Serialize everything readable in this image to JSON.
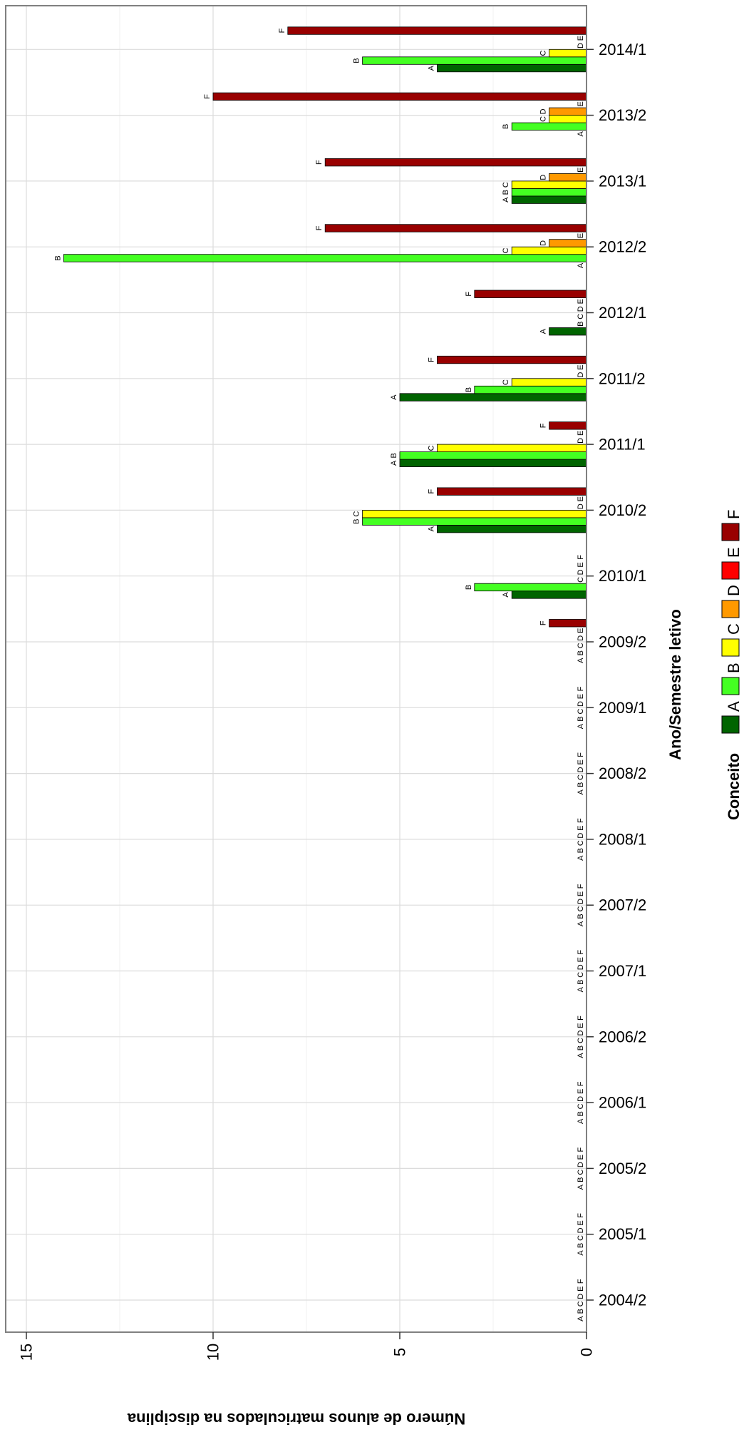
{
  "chart_data": {
    "type": "bar",
    "orientation": "horizontal",
    "xlabel": "Ano/Semestre letivo",
    "ylabel": "Número de alunos matriculados na disciplina",
    "ylim": [
      0,
      15.5
    ],
    "yticks": [
      0,
      5,
      10,
      15
    ],
    "grid": true,
    "legend": {
      "title": "Conceito",
      "position": "bottom",
      "entries": [
        "A",
        "B",
        "C",
        "D",
        "E",
        "F"
      ]
    },
    "colors": {
      "A": "#006400",
      "B": "#44ff22",
      "C": "#ffff00",
      "D": "#ff9900",
      "E": "#ff0000",
      "F": "#990000"
    },
    "categories": [
      "2004/2",
      "2005/1",
      "2005/2",
      "2006/1",
      "2006/2",
      "2007/1",
      "2007/2",
      "2008/1",
      "2008/2",
      "2009/1",
      "2009/2",
      "2010/1",
      "2010/2",
      "2011/1",
      "2011/2",
      "2012/1",
      "2012/2",
      "2013/1",
      "2013/2",
      "2014/1"
    ],
    "series": [
      {
        "name": "A",
        "values": [
          0,
          0,
          0,
          0,
          0,
          0,
          0,
          0,
          0,
          0,
          0,
          2,
          4,
          5,
          5,
          1,
          0,
          2,
          0,
          4
        ]
      },
      {
        "name": "B",
        "values": [
          0,
          0,
          0,
          0,
          0,
          0,
          0,
          0,
          0,
          0,
          0,
          3,
          6,
          5,
          3,
          0,
          14,
          2,
          2,
          6
        ]
      },
      {
        "name": "C",
        "values": [
          0,
          0,
          0,
          0,
          0,
          0,
          0,
          0,
          0,
          0,
          0,
          0,
          6,
          4,
          2,
          0,
          2,
          2,
          1,
          1
        ]
      },
      {
        "name": "D",
        "values": [
          0,
          0,
          0,
          0,
          0,
          0,
          0,
          0,
          0,
          0,
          0,
          0,
          0,
          0,
          0,
          0,
          1,
          1,
          1,
          0
        ]
      },
      {
        "name": "E",
        "values": [
          0,
          0,
          0,
          0,
          0,
          0,
          0,
          0,
          0,
          0,
          0,
          0,
          0,
          0,
          0,
          0,
          0,
          0,
          0,
          0
        ]
      },
      {
        "name": "F",
        "values": [
          0,
          0,
          0,
          0,
          0,
          0,
          0,
          0,
          0,
          0,
          1,
          0,
          4,
          1,
          4,
          3,
          7,
          7,
          10,
          8
        ]
      }
    ]
  }
}
